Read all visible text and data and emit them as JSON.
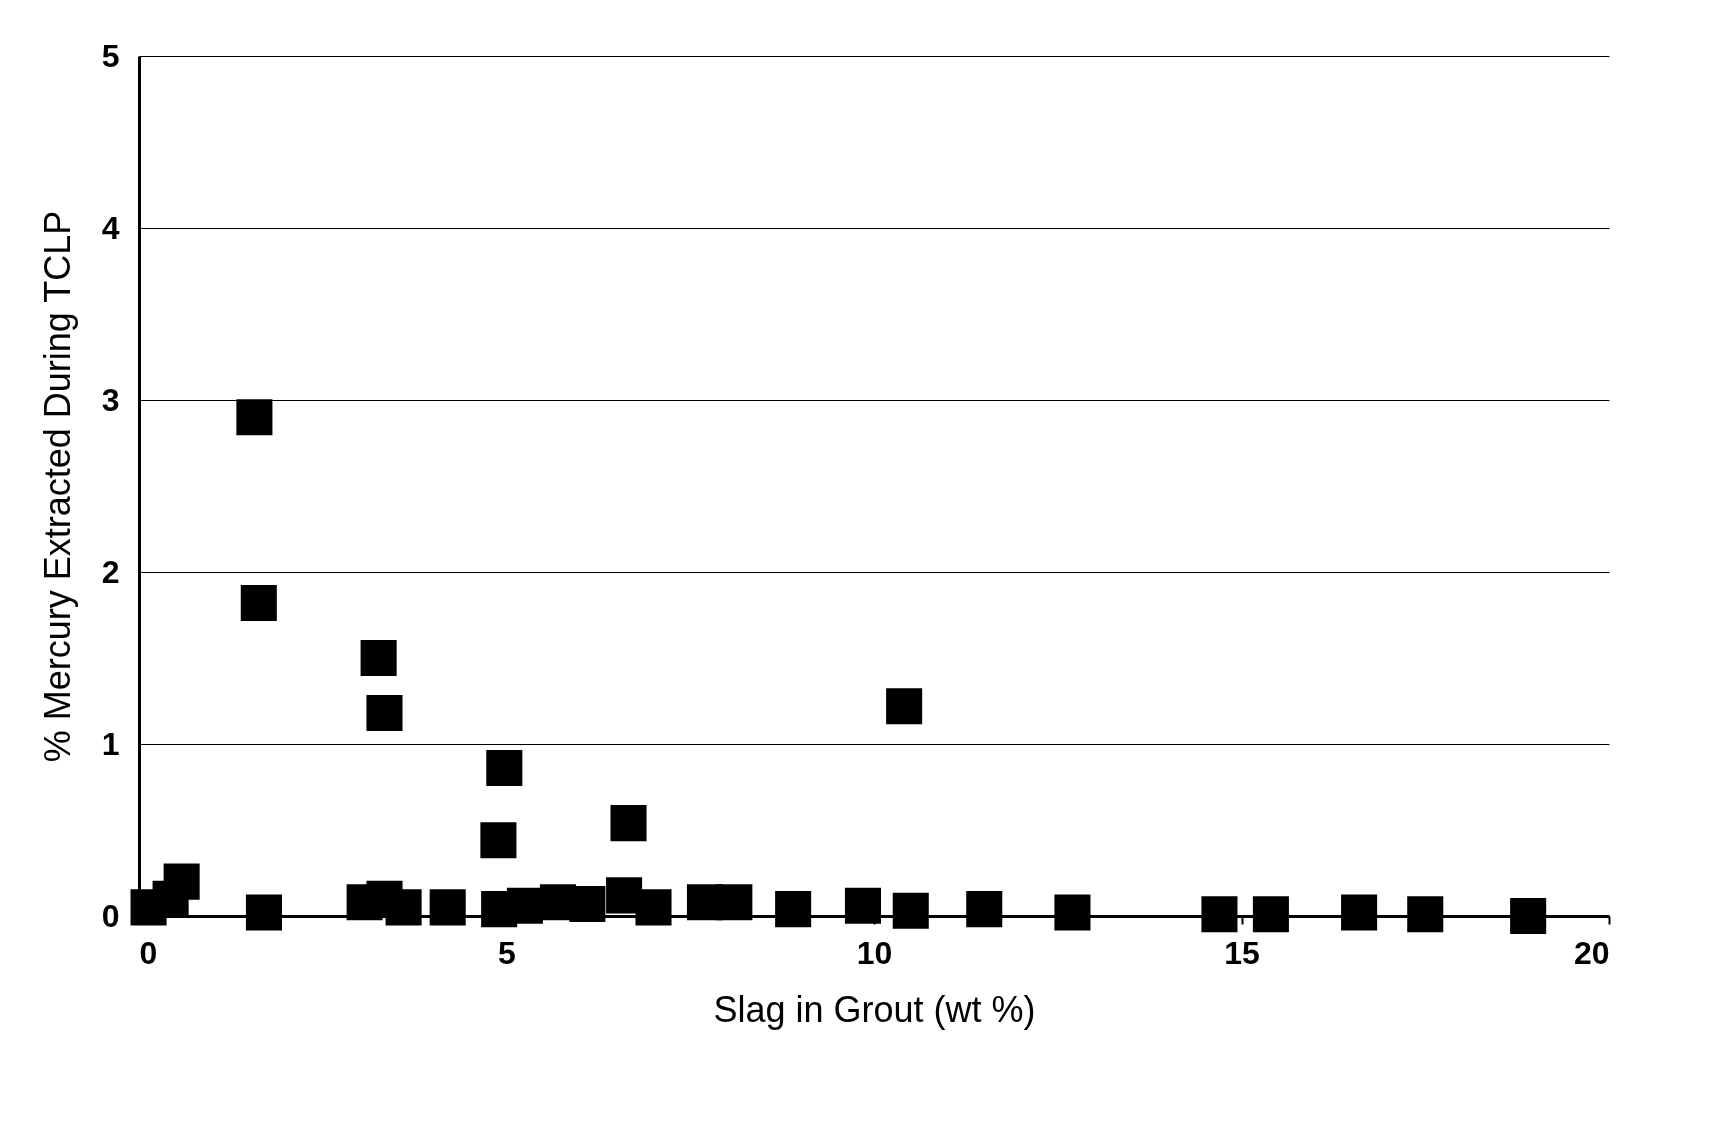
{
  "chart_data": {
    "type": "scatter",
    "xlabel": "Slag in Grout (wt %)",
    "ylabel": "% Mercury Extracted During TCLP",
    "x": [
      1.57,
      1.63,
      3.26,
      3.34,
      4.97,
      4.89,
      6.66,
      10.41,
      0.58,
      0.13,
      0.43,
      1.7,
      3.07,
      3.34,
      3.6,
      4.2,
      4.9,
      5.25,
      5.7,
      6.1,
      6.6,
      7.0,
      7.7,
      8.1,
      8.9,
      9.85,
      10.5,
      11.5,
      12.7,
      14.7,
      15.4,
      16.6,
      17.5,
      18.9
    ],
    "values": [
      2.9,
      1.82,
      1.5,
      1.18,
      0.86,
      0.44,
      0.54,
      1.22,
      0.2,
      0.05,
      0.1,
      0.02,
      0.08,
      0.1,
      0.05,
      0.05,
      0.04,
      0.06,
      0.08,
      0.07,
      0.12,
      0.05,
      0.08,
      0.08,
      0.04,
      0.06,
      0.03,
      0.04,
      0.02,
      0.01,
      0.01,
      0.02,
      0.01,
      0.0
    ],
    "color": "#000000",
    "marker": "square",
    "xlim": [
      0,
      20
    ],
    "xticks": [
      0,
      5,
      10,
      15,
      20
    ],
    "ylim": [
      0,
      5
    ],
    "yticks": [
      0,
      1,
      2,
      3,
      4,
      5
    ],
    "grid": "y"
  }
}
